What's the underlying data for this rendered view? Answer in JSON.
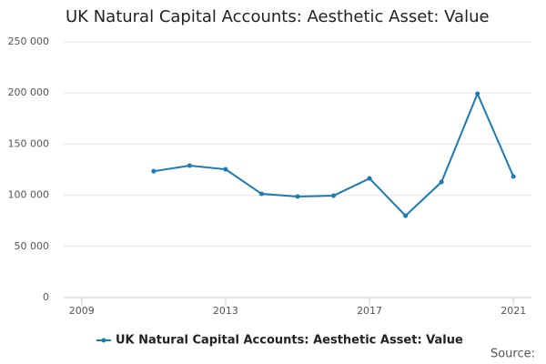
{
  "chart_data": {
    "type": "line",
    "title": "UK Natural Capital Accounts: Aesthetic Asset: Value",
    "x": [
      2011,
      2012,
      2013,
      2014,
      2015,
      2016,
      2017,
      2018,
      2019,
      2020,
      2021
    ],
    "series": [
      {
        "name": "UK Natural Capital Accounts: Aesthetic Asset: Value",
        "color": "#1a7ab5",
        "values": [
          123500,
          129000,
          125400,
          101400,
          98800,
          99600,
          116500,
          80000,
          113000,
          199300,
          118300
        ]
      }
    ],
    "xlim": [
      2008.5,
      2021.5
    ],
    "xticks": [
      2009,
      2013,
      2017,
      2021
    ],
    "ylim": [
      0,
      250000
    ],
    "yticks": [
      0,
      {
        "value": 50000,
        "label": "50 000"
      },
      {
        "value": 100000,
        "label": "100 000"
      },
      {
        "value": 150000,
        "label": "150 000"
      },
      {
        "value": 200000,
        "label": "200 000"
      },
      {
        "value": 250000,
        "label": "250 000"
      }
    ],
    "grid": true,
    "legend": "bottom",
    "source": "Source:"
  }
}
